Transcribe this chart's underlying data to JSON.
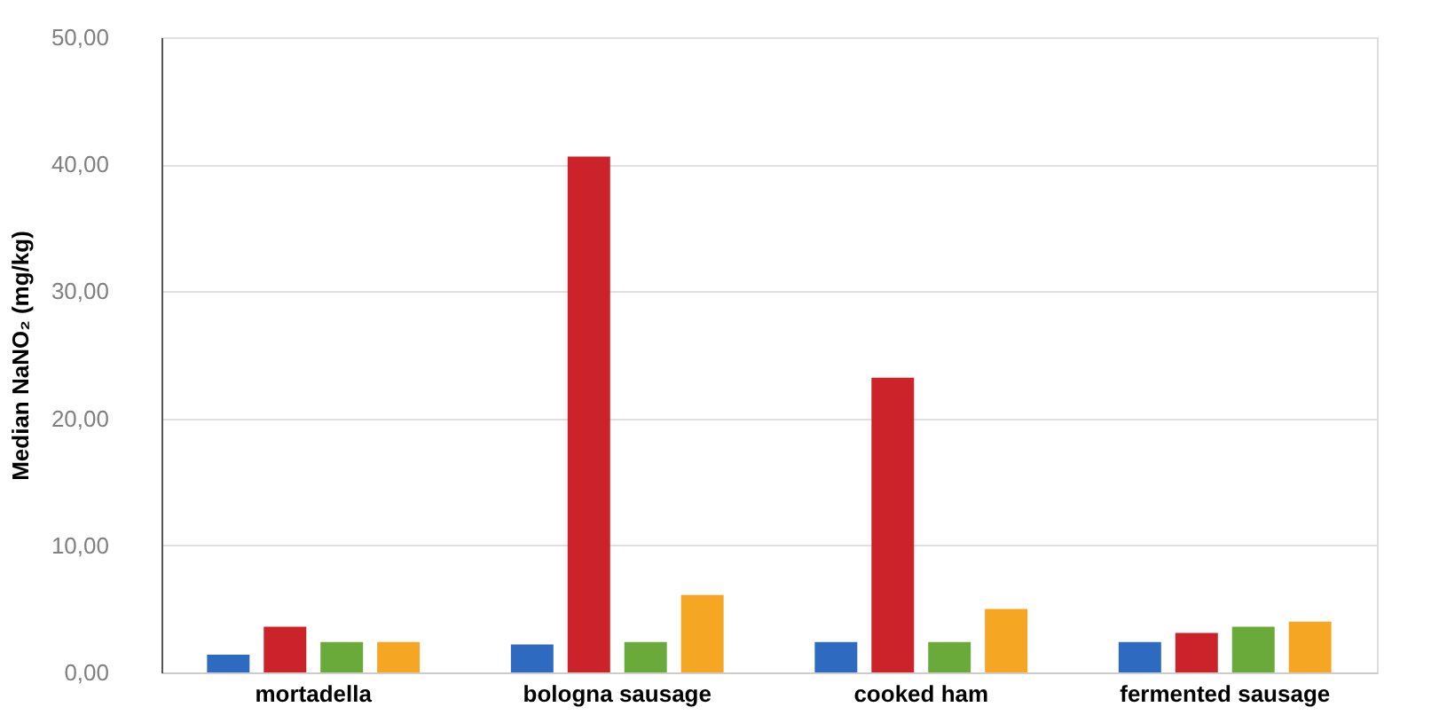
{
  "chart_data": {
    "type": "bar",
    "ylabel": "Median NaNO₂ (mg/kg)",
    "categories": [
      "mortadella",
      "bologna sausage",
      "cooked ham",
      "fermented sausage"
    ],
    "series": [
      {
        "color": "#2e6bc0",
        "values": [
          1.4,
          2.2,
          2.4,
          2.4
        ]
      },
      {
        "color": "#cc2229",
        "values": [
          3.6,
          40.6,
          23.2,
          3.1
        ]
      },
      {
        "color": "#6aaa3a",
        "values": [
          2.4,
          2.4,
          2.4,
          3.6
        ]
      },
      {
        "color": "#f5a623",
        "values": [
          2.4,
          6.1,
          5.0,
          4.0
        ]
      }
    ],
    "ylim": [
      0,
      50
    ],
    "yticks": [
      {
        "value": 0,
        "label": "0,00"
      },
      {
        "value": 10,
        "label": "10,00"
      },
      {
        "value": 20,
        "label": "20,00"
      },
      {
        "value": 30,
        "label": "30,00"
      },
      {
        "value": 40,
        "label": "40,00"
      },
      {
        "value": 50,
        "label": "50,00"
      }
    ],
    "grid": "y"
  }
}
